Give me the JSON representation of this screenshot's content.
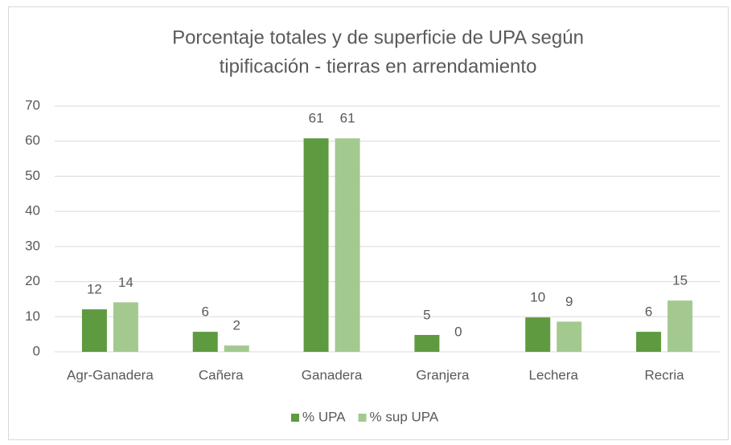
{
  "chart_data": {
    "type": "bar",
    "title": [
      "Porcentaje totales y de superficie de UPA según",
      "tipificación - tierras en arrendamiento"
    ],
    "categories": [
      "Agr-Ganadera",
      "Cañera",
      "Ganadera",
      "Granjera",
      "Lechera",
      "Recria"
    ],
    "series": [
      {
        "name": "% UPA",
        "color": "#5e9a3f",
        "values": [
          12.1,
          5.7,
          60.8,
          4.8,
          9.8,
          5.7
        ],
        "value_labels": [
          "12",
          "6",
          "61",
          "5",
          "10",
          "6"
        ]
      },
      {
        "name": "% sup UPA",
        "color": "#a3c98f",
        "values": [
          14.1,
          1.8,
          60.8,
          0,
          8.6,
          14.6
        ],
        "value_labels": [
          "14",
          "2",
          "61",
          "0",
          "9",
          "15"
        ]
      }
    ],
    "ylim": [
      0,
      70
    ],
    "yticks": [
      0,
      10,
      20,
      30,
      40,
      50,
      60,
      70
    ],
    "grid": true,
    "legend": "bottom"
  }
}
